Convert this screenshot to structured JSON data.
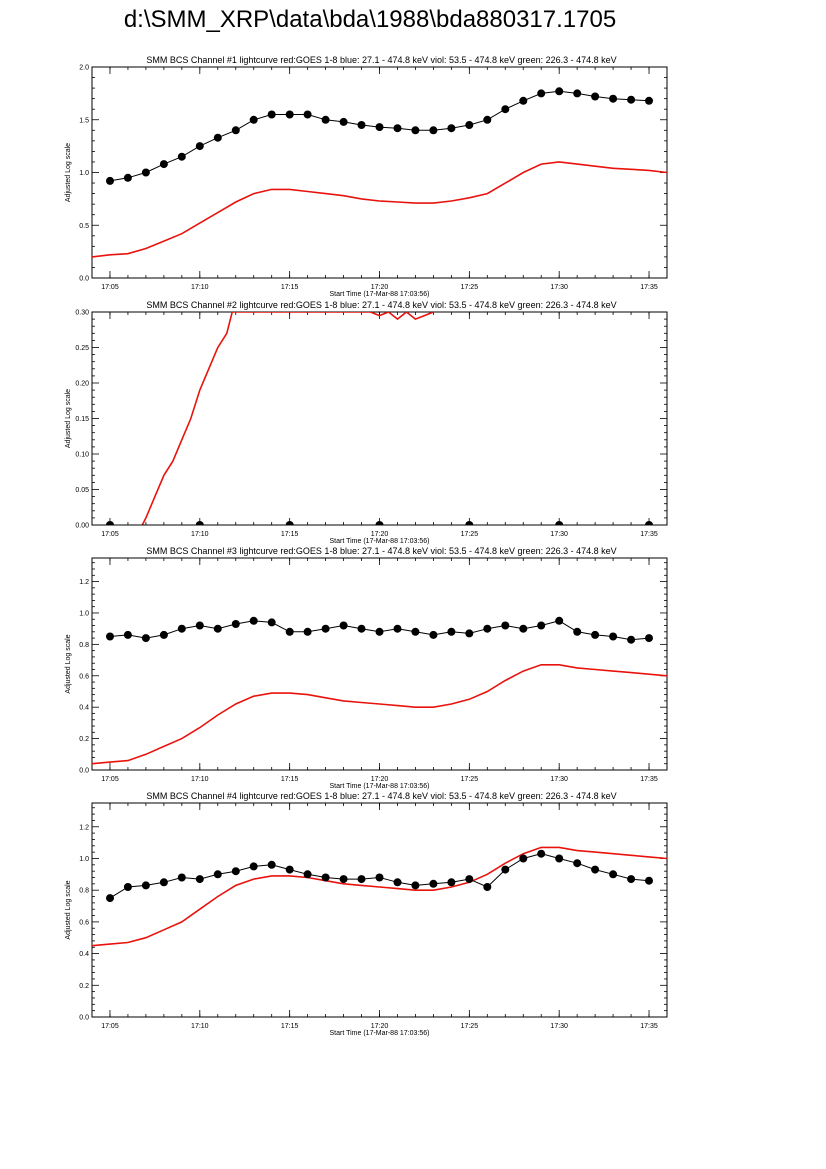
{
  "page": {
    "title": "d:\\SMM_XRP\\data\\bda\\1988\\bda880317.1705"
  },
  "colors": {
    "goes": "#e8130c",
    "bcs": "#000000"
  },
  "chart_data": [
    {
      "type": "line",
      "title": "SMM BCS Channel #1 lightcurve  red:GOES 1-8  blue: 27.1 - 474.8 keV  viol: 53.5 - 474.8 keV  green: 226.3 - 474.8 keV",
      "xlabel": "Start Time (17-Mar-88 17:03:56)",
      "ylabel": "Adjusted Log scale",
      "xlim": [
        "17:04",
        "17:36"
      ],
      "ylim": [
        0,
        2.0
      ],
      "x_ticks": [
        "17:05",
        "17:10",
        "17:15",
        "17:20",
        "17:25",
        "17:30",
        "17:35"
      ],
      "y_ticks": [
        "0.0",
        "0.5",
        "1.0",
        "1.5",
        "2.0"
      ],
      "y_tick_values": [
        0,
        0.5,
        1.0,
        1.5,
        2.0
      ],
      "series": [
        {
          "color": "#e8130c",
          "style": "line",
          "x": [
            "17:04",
            "17:05",
            "17:06",
            "17:07",
            "17:08",
            "17:09",
            "17:10",
            "17:11",
            "17:12",
            "17:13",
            "17:14",
            "17:15",
            "17:16",
            "17:17",
            "17:18",
            "17:19",
            "17:20",
            "17:21",
            "17:22",
            "17:23",
            "17:24",
            "17:25",
            "17:26",
            "17:27",
            "17:28",
            "17:29",
            "17:30",
            "17:31",
            "17:32",
            "17:33",
            "17:34",
            "17:35",
            "17:36"
          ],
          "values": [
            0.2,
            0.22,
            0.23,
            0.28,
            0.35,
            0.42,
            0.52,
            0.62,
            0.72,
            0.8,
            0.84,
            0.84,
            0.82,
            0.8,
            0.78,
            0.75,
            0.73,
            0.72,
            0.71,
            0.71,
            0.73,
            0.76,
            0.8,
            0.9,
            1.0,
            1.08,
            1.1,
            1.08,
            1.06,
            1.04,
            1.03,
            1.02,
            1.0
          ]
        },
        {
          "color": "#000000",
          "style": "markers",
          "x": [
            "17:05",
            "17:06",
            "17:07",
            "17:08",
            "17:09",
            "17:10",
            "17:11",
            "17:12",
            "17:13",
            "17:14",
            "17:15",
            "17:16",
            "17:17",
            "17:18",
            "17:19",
            "17:20",
            "17:21",
            "17:22",
            "17:23",
            "17:24",
            "17:25",
            "17:26",
            "17:27",
            "17:28",
            "17:29",
            "17:30",
            "17:31",
            "17:32",
            "17:33",
            "17:34",
            "17:35"
          ],
          "values": [
            0.92,
            0.95,
            1.0,
            1.08,
            1.15,
            1.25,
            1.33,
            1.4,
            1.5,
            1.55,
            1.55,
            1.55,
            1.5,
            1.48,
            1.45,
            1.43,
            1.42,
            1.4,
            1.4,
            1.42,
            1.45,
            1.5,
            1.6,
            1.68,
            1.75,
            1.77,
            1.75,
            1.72,
            1.7,
            1.69,
            1.68
          ]
        }
      ]
    },
    {
      "type": "line",
      "title": "SMM BCS Channel #2 lightcurve  red:GOES 1-8  blue: 27.1 - 474.8 keV  viol: 53.5 - 474.8 keV  green: 226.3 - 474.8 keV",
      "xlabel": "Start Time (17-Mar-88 17:03:56)",
      "ylabel": "Adjusted Log scale",
      "xlim": [
        "17:04",
        "17:36"
      ],
      "ylim": [
        0,
        0.3
      ],
      "x_ticks": [
        "17:05",
        "17:10",
        "17:15",
        "17:20",
        "17:25",
        "17:30",
        "17:35"
      ],
      "y_ticks": [
        "0.00",
        "0.05",
        "0.10",
        "0.15",
        "0.20",
        "0.25",
        "0.30"
      ],
      "y_tick_values": [
        0,
        0.05,
        0.1,
        0.15,
        0.2,
        0.25,
        0.3
      ],
      "series": [
        {
          "color": "#e8130c",
          "style": "line",
          "x": [
            "17:06.8",
            "17:07",
            "17:07.5",
            "17:08",
            "17:08.5",
            "17:09",
            "17:09.5",
            "17:10",
            "17:10.5",
            "17:11",
            "17:11.5",
            "17:11.8",
            "17:19.5",
            "17:20",
            "17:20.5",
            "17:21",
            "17:21.5",
            "17:22",
            "17:22.5",
            "17:23"
          ],
          "values": [
            0.0,
            0.01,
            0.04,
            0.07,
            0.09,
            0.12,
            0.15,
            0.19,
            0.22,
            0.25,
            0.27,
            0.3,
            0.3,
            0.295,
            0.3,
            0.29,
            0.3,
            0.29,
            0.295,
            0.3
          ]
        },
        {
          "color": "#000000",
          "style": "markers",
          "x": [
            "17:05",
            "17:10",
            "17:15",
            "17:20",
            "17:25",
            "17:30",
            "17:35"
          ],
          "values": [
            0,
            0,
            0,
            0,
            0,
            0,
            0
          ]
        }
      ]
    },
    {
      "type": "line",
      "title": "SMM BCS Channel #3 lightcurve  red:GOES 1-8  blue: 27.1 - 474.8 keV  viol: 53.5 - 474.8 keV  green: 226.3 - 474.8 keV",
      "xlabel": "Start Time (17-Mar-88 17:03:56)",
      "ylabel": "Adjusted Log scale",
      "xlim": [
        "17:04",
        "17:36"
      ],
      "ylim": [
        0,
        1.35
      ],
      "x_ticks": [
        "17:05",
        "17:10",
        "17:15",
        "17:20",
        "17:25",
        "17:30",
        "17:35"
      ],
      "y_ticks": [
        "0.0",
        "0.2",
        "0.4",
        "0.6",
        "0.8",
        "1.0",
        "1.2"
      ],
      "y_tick_values": [
        0,
        0.2,
        0.4,
        0.6,
        0.8,
        1.0,
        1.2
      ],
      "series": [
        {
          "color": "#e8130c",
          "style": "line",
          "x": [
            "17:04",
            "17:05",
            "17:06",
            "17:07",
            "17:08",
            "17:09",
            "17:10",
            "17:11",
            "17:12",
            "17:13",
            "17:14",
            "17:15",
            "17:16",
            "17:17",
            "17:18",
            "17:19",
            "17:20",
            "17:21",
            "17:22",
            "17:23",
            "17:24",
            "17:25",
            "17:26",
            "17:27",
            "17:28",
            "17:29",
            "17:30",
            "17:31",
            "17:32",
            "17:33",
            "17:34",
            "17:35",
            "17:36"
          ],
          "values": [
            0.04,
            0.05,
            0.06,
            0.1,
            0.15,
            0.2,
            0.27,
            0.35,
            0.42,
            0.47,
            0.49,
            0.49,
            0.48,
            0.46,
            0.44,
            0.43,
            0.42,
            0.41,
            0.4,
            0.4,
            0.42,
            0.45,
            0.5,
            0.57,
            0.63,
            0.67,
            0.67,
            0.65,
            0.64,
            0.63,
            0.62,
            0.61,
            0.6
          ]
        },
        {
          "color": "#000000",
          "style": "markers",
          "x": [
            "17:05",
            "17:06",
            "17:07",
            "17:08",
            "17:09",
            "17:10",
            "17:11",
            "17:12",
            "17:13",
            "17:14",
            "17:15",
            "17:16",
            "17:17",
            "17:18",
            "17:19",
            "17:20",
            "17:21",
            "17:22",
            "17:23",
            "17:24",
            "17:25",
            "17:26",
            "17:27",
            "17:28",
            "17:29",
            "17:30",
            "17:31",
            "17:32",
            "17:33",
            "17:34",
            "17:35"
          ],
          "values": [
            0.85,
            0.86,
            0.84,
            0.86,
            0.9,
            0.92,
            0.9,
            0.93,
            0.95,
            0.94,
            0.88,
            0.88,
            0.9,
            0.92,
            0.9,
            0.88,
            0.9,
            0.88,
            0.86,
            0.88,
            0.87,
            0.9,
            0.92,
            0.9,
            0.92,
            0.95,
            0.88,
            0.86,
            0.85,
            0.83,
            0.84
          ]
        }
      ]
    },
    {
      "type": "line",
      "title": "SMM BCS Channel #4 lightcurve  red:GOES 1-8  blue: 27.1 - 474.8 keV  viol: 53.5 - 474.8 keV  green: 226.3 - 474.8 keV",
      "xlabel": "Start Time (17-Mar-88 17:03:56)",
      "ylabel": "Adjusted Log scale",
      "xlim": [
        "17:04",
        "17:36"
      ],
      "ylim": [
        0,
        1.35
      ],
      "x_ticks": [
        "17:05",
        "17:10",
        "17:15",
        "17:20",
        "17:25",
        "17:30",
        "17:35"
      ],
      "y_ticks": [
        "0.0",
        "0.2",
        "0.4",
        "0.6",
        "0.8",
        "1.0",
        "1.2"
      ],
      "y_tick_values": [
        0,
        0.2,
        0.4,
        0.6,
        0.8,
        1.0,
        1.2
      ],
      "series": [
        {
          "color": "#e8130c",
          "style": "line",
          "x": [
            "17:04",
            "17:05",
            "17:06",
            "17:07",
            "17:08",
            "17:09",
            "17:10",
            "17:11",
            "17:12",
            "17:13",
            "17:14",
            "17:15",
            "17:16",
            "17:17",
            "17:18",
            "17:19",
            "17:20",
            "17:21",
            "17:22",
            "17:23",
            "17:24",
            "17:25",
            "17:26",
            "17:27",
            "17:28",
            "17:29",
            "17:30",
            "17:31",
            "17:32",
            "17:33",
            "17:34",
            "17:35",
            "17:36"
          ],
          "values": [
            0.45,
            0.46,
            0.47,
            0.5,
            0.55,
            0.6,
            0.68,
            0.76,
            0.83,
            0.87,
            0.89,
            0.89,
            0.88,
            0.86,
            0.84,
            0.83,
            0.82,
            0.81,
            0.8,
            0.8,
            0.82,
            0.85,
            0.9,
            0.97,
            1.03,
            1.07,
            1.07,
            1.05,
            1.04,
            1.03,
            1.02,
            1.01,
            1.0
          ]
        },
        {
          "color": "#000000",
          "style": "markers",
          "x": [
            "17:05",
            "17:06",
            "17:07",
            "17:08",
            "17:09",
            "17:10",
            "17:11",
            "17:12",
            "17:13",
            "17:14",
            "17:15",
            "17:16",
            "17:17",
            "17:18",
            "17:19",
            "17:20",
            "17:21",
            "17:22",
            "17:23",
            "17:24",
            "17:25",
            "17:26",
            "17:27",
            "17:28",
            "17:29",
            "17:30",
            "17:31",
            "17:32",
            "17:33",
            "17:34",
            "17:35"
          ],
          "values": [
            0.75,
            0.82,
            0.83,
            0.85,
            0.88,
            0.87,
            0.9,
            0.92,
            0.95,
            0.96,
            0.93,
            0.9,
            0.88,
            0.87,
            0.87,
            0.88,
            0.85,
            0.83,
            0.84,
            0.85,
            0.87,
            0.82,
            0.93,
            1.0,
            1.03,
            1.0,
            0.97,
            0.93,
            0.9,
            0.87,
            0.86
          ]
        }
      ]
    }
  ]
}
